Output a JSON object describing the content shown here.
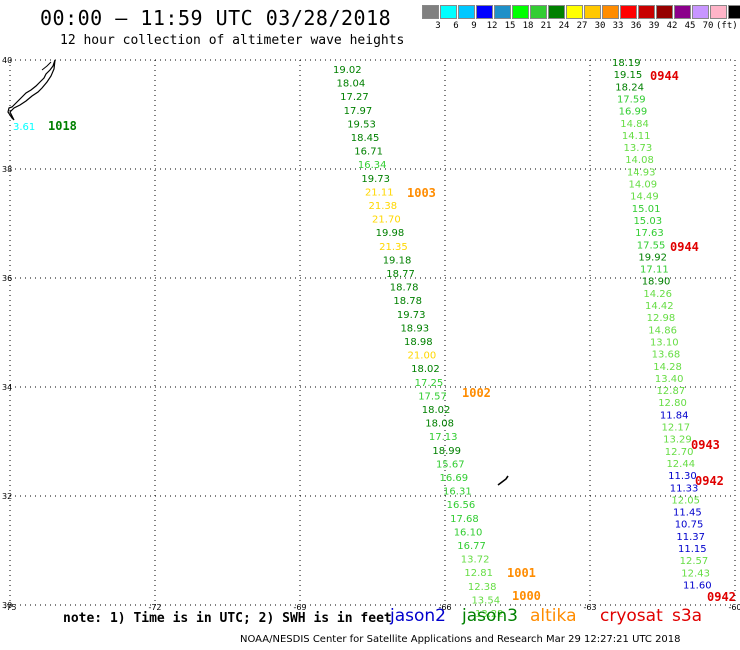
{
  "header": {
    "title": "00:00 – 11:59 UTC 03/28/2018",
    "subtitle": "12 hour collection of altimeter wave heights"
  },
  "colorbar": {
    "colors": [
      "#808080",
      "#00ffff",
      "#00c8ff",
      "#0000ff",
      "#1e90c8",
      "#00ff00",
      "#32cd32",
      "#008000",
      "#ffff00",
      "#ffc800",
      "#ff8c00",
      "#ff0000",
      "#c80000",
      "#960000",
      "#8b008b",
      "#c896ff",
      "#ffb4c8",
      "#000000"
    ],
    "labels": [
      "3",
      "6",
      "9",
      "12",
      "15",
      "18",
      "21",
      "24",
      "27",
      "30",
      "33",
      "36",
      "39",
      "42",
      "45",
      "70"
    ],
    "unit": "(ft)"
  },
  "axes": {
    "lon_ticks": [
      "-75",
      "-72",
      "-69",
      "-66",
      "-63",
      "-60"
    ],
    "lat_ticks": [
      "40",
      "38",
      "36",
      "34",
      "32",
      "30"
    ],
    "lon_range": [
      -75,
      -60
    ],
    "lat_range": [
      30,
      40
    ]
  },
  "colors": {
    "green_dark": "#008000",
    "green_mid": "#32cd32",
    "green_light": "#66dd44",
    "yellow": "#ffd700",
    "cyan": "#00ffff",
    "blue": "#0000cc",
    "orange": "#ff8c00",
    "red": "#e00000"
  },
  "track_a": [
    {
      "v": "19.02",
      "c": "green_dark"
    },
    {
      "v": "18.04",
      "c": "green_dark"
    },
    {
      "v": "17.27",
      "c": "green_dark"
    },
    {
      "v": "17.97",
      "c": "green_dark"
    },
    {
      "v": "19.53",
      "c": "green_dark"
    },
    {
      "v": "18.45",
      "c": "green_dark"
    },
    {
      "v": "16.71",
      "c": "green_dark"
    },
    {
      "v": "16.34",
      "c": "green_mid"
    },
    {
      "v": "19.73",
      "c": "green_dark"
    },
    {
      "v": "21.11",
      "c": "yellow"
    },
    {
      "v": "21.38",
      "c": "yellow"
    },
    {
      "v": "21.70",
      "c": "yellow"
    },
    {
      "v": "19.98",
      "c": "green_dark"
    },
    {
      "v": "21.35",
      "c": "yellow"
    },
    {
      "v": "19.18",
      "c": "green_dark"
    },
    {
      "v": "18.77",
      "c": "green_dark"
    },
    {
      "v": "18.78",
      "c": "green_dark"
    },
    {
      "v": "18.78",
      "c": "green_dark"
    },
    {
      "v": "19.73",
      "c": "green_dark"
    },
    {
      "v": "18.93",
      "c": "green_dark"
    },
    {
      "v": "18.98",
      "c": "green_dark"
    },
    {
      "v": "21.00",
      "c": "yellow"
    },
    {
      "v": "18.02",
      "c": "green_dark"
    },
    {
      "v": "17.25",
      "c": "green_mid"
    },
    {
      "v": "17.57",
      "c": "green_mid"
    },
    {
      "v": "18.02",
      "c": "green_dark"
    },
    {
      "v": "18.08",
      "c": "green_dark"
    },
    {
      "v": "17.13",
      "c": "green_mid"
    },
    {
      "v": "18.99",
      "c": "green_dark"
    },
    {
      "v": "15.67",
      "c": "green_mid"
    },
    {
      "v": "16.69",
      "c": "green_mid"
    },
    {
      "v": "16.31",
      "c": "green_mid"
    },
    {
      "v": "16.56",
      "c": "green_mid"
    },
    {
      "v": "17.68",
      "c": "green_mid"
    },
    {
      "v": "16.10",
      "c": "green_mid"
    },
    {
      "v": "16.77",
      "c": "green_mid"
    },
    {
      "v": "13.72",
      "c": "green_light"
    },
    {
      "v": "12.81",
      "c": "green_light"
    },
    {
      "v": "12.38",
      "c": "green_light"
    },
    {
      "v": "13.54",
      "c": "green_light"
    },
    {
      "v": "13.22",
      "c": "green_light"
    }
  ],
  "track_b": [
    {
      "v": "18.19",
      "c": "green_dark"
    },
    {
      "v": "19.15",
      "c": "green_dark"
    },
    {
      "v": "18.24",
      "c": "green_dark"
    },
    {
      "v": "17.59",
      "c": "green_mid"
    },
    {
      "v": "16.99",
      "c": "green_mid"
    },
    {
      "v": "14.84",
      "c": "green_light"
    },
    {
      "v": "14.11",
      "c": "green_light"
    },
    {
      "v": "13.73",
      "c": "green_light"
    },
    {
      "v": "14.08",
      "c": "green_light"
    },
    {
      "v": "14.93",
      "c": "green_light"
    },
    {
      "v": "14.09",
      "c": "green_light"
    },
    {
      "v": "14.49",
      "c": "green_light"
    },
    {
      "v": "15.01",
      "c": "green_mid"
    },
    {
      "v": "15.03",
      "c": "green_mid"
    },
    {
      "v": "17.63",
      "c": "green_mid"
    },
    {
      "v": "17.55",
      "c": "green_mid"
    },
    {
      "v": "19.92",
      "c": "green_dark"
    },
    {
      "v": "17.11",
      "c": "green_mid"
    },
    {
      "v": "18.90",
      "c": "green_dark"
    },
    {
      "v": "14.26",
      "c": "green_light"
    },
    {
      "v": "14.42",
      "c": "green_light"
    },
    {
      "v": "12.98",
      "c": "green_light"
    },
    {
      "v": "14.86",
      "c": "green_light"
    },
    {
      "v": "13.10",
      "c": "green_light"
    },
    {
      "v": "13.68",
      "c": "green_light"
    },
    {
      "v": "14.28",
      "c": "green_light"
    },
    {
      "v": "13.40",
      "c": "green_light"
    },
    {
      "v": "12.87",
      "c": "green_light"
    },
    {
      "v": "12.80",
      "c": "green_light"
    },
    {
      "v": "11.84",
      "c": "blue"
    },
    {
      "v": "12.17",
      "c": "green_light"
    },
    {
      "v": "13.29",
      "c": "green_light"
    },
    {
      "v": "12.70",
      "c": "green_light"
    },
    {
      "v": "12.44",
      "c": "green_light"
    },
    {
      "v": "11.30",
      "c": "blue"
    },
    {
      "v": "11.33",
      "c": "blue"
    },
    {
      "v": "12.05",
      "c": "green_light"
    },
    {
      "v": "11.45",
      "c": "blue"
    },
    {
      "v": "10.75",
      "c": "blue"
    },
    {
      "v": "11.37",
      "c": "blue"
    },
    {
      "v": "11.15",
      "c": "blue"
    },
    {
      "v": "12.57",
      "c": "green_light"
    },
    {
      "v": "12.43",
      "c": "green_light"
    },
    {
      "v": "11.60",
      "c": "blue"
    }
  ],
  "coast_obs": [
    {
      "v": "3.61",
      "c": "cyan"
    },
    {
      "v": "1018",
      "c": "green_dark"
    }
  ],
  "pressure_labels": [
    {
      "v": "1003",
      "c": "orange"
    },
    {
      "v": "1002",
      "c": "orange"
    },
    {
      "v": "1001",
      "c": "orange"
    },
    {
      "v": "1000",
      "c": "orange"
    },
    {
      "v": "0944",
      "c": "red"
    },
    {
      "v": "0944",
      "c": "red"
    },
    {
      "v": "0943",
      "c": "red"
    },
    {
      "v": "0942",
      "c": "red"
    },
    {
      "v": "0942",
      "c": "red"
    }
  ],
  "footer": {
    "note": "note: 1) Time is in UTC; 2) SWH is in feet",
    "satellites": [
      {
        "name": "jason2",
        "color": "#0000cc"
      },
      {
        "name": "jason3",
        "color": "#008000"
      },
      {
        "name": "altika",
        "color": "#ff8c00"
      },
      {
        "name": "cryosat",
        "color": "#e00000"
      },
      {
        "name": "s3a",
        "color": "#e00000"
      }
    ],
    "credit": "NOAA/NESDIS Center for Satellite Applications and Research    Mar 29 12:27:21 UTC 2018"
  }
}
